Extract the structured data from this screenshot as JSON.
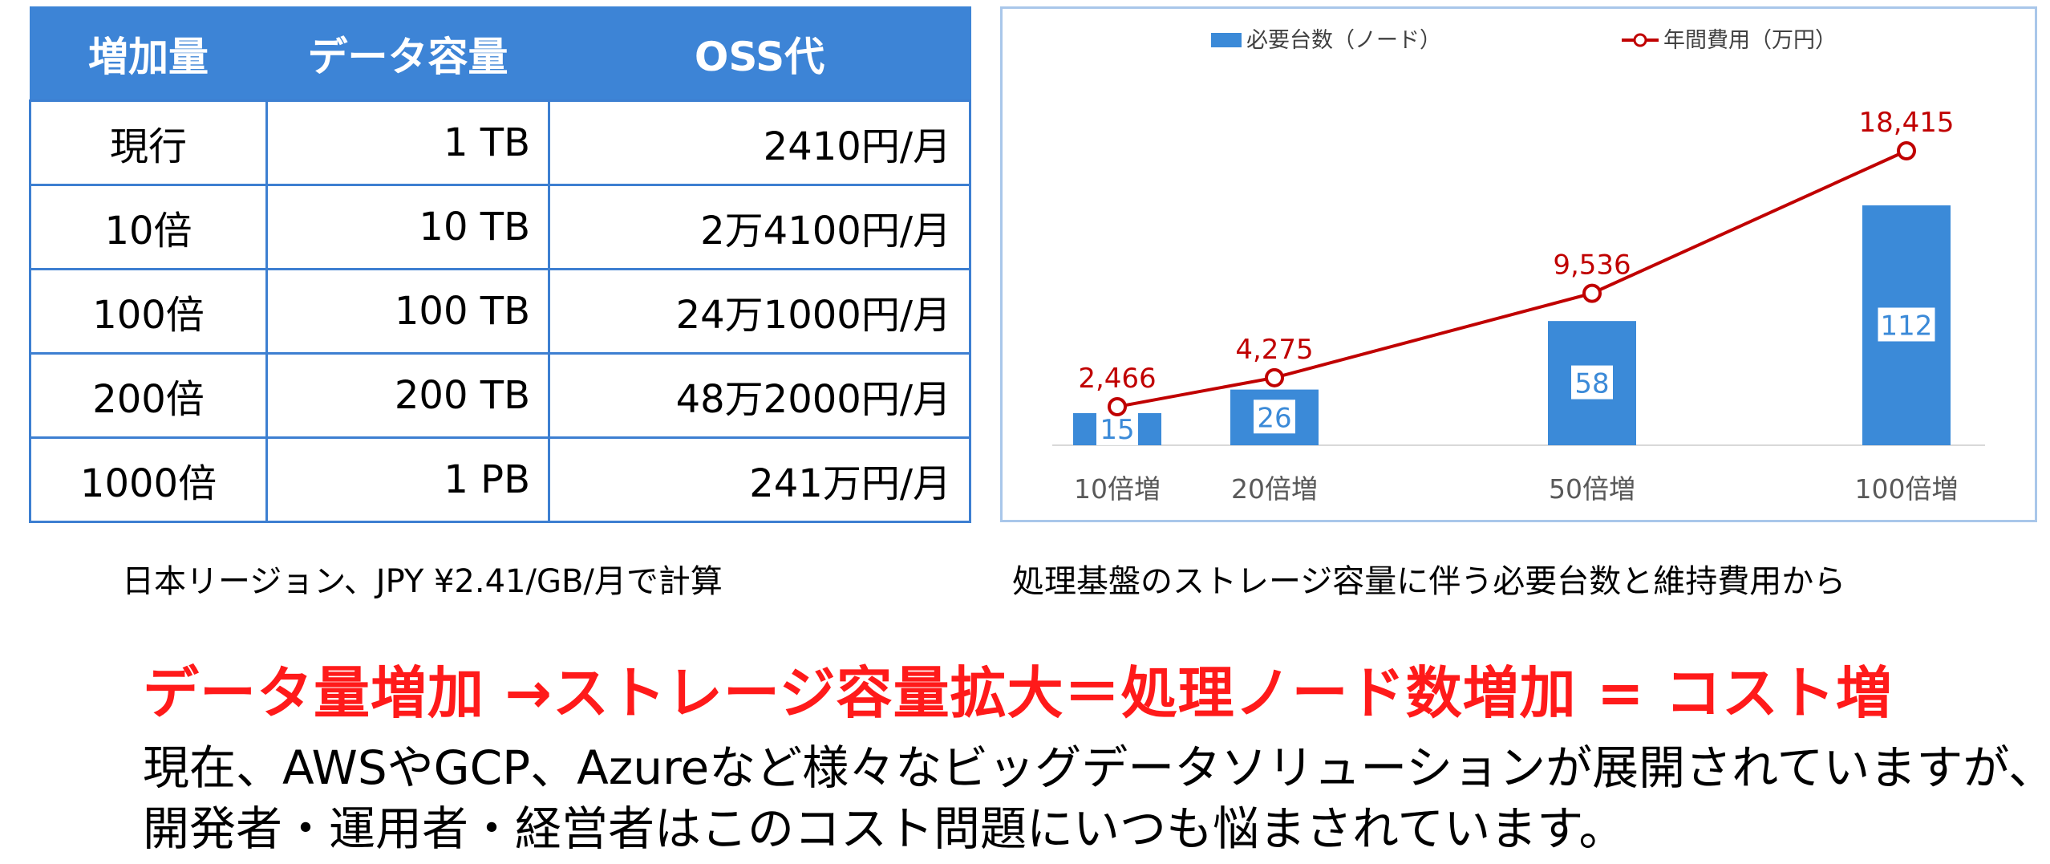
{
  "table": {
    "headers": [
      "増加量",
      "データ容量",
      "OSS代"
    ],
    "rows": [
      [
        "現行",
        "1 TB",
        "2410円/月"
      ],
      [
        "10倍",
        "10 TB",
        "2万4100円/月"
      ],
      [
        "100倍",
        "100 TB",
        "24万1000円/月"
      ],
      [
        "200倍",
        "200 TB",
        "48万2000円/月"
      ],
      [
        "1000倍",
        "1 PB",
        "241万円/月"
      ]
    ],
    "note": "日本リージョン、JPY ¥2.41/GB/月で計算"
  },
  "chart_caption": "処理基盤のストレージ容量に伴う必要台数と維持費用から",
  "chart_data": {
    "type": "bar",
    "categories": [
      "10倍増",
      "20倍増",
      "50倍増",
      "100倍増"
    ],
    "series": [
      {
        "name": "必要台数（ノード）",
        "type": "bar",
        "values": [
          15,
          26,
          58,
          112
        ],
        "labels": [
          "15",
          "26",
          "58",
          "112"
        ],
        "color": "#3b8ad8"
      },
      {
        "name": "年間費用（万円）",
        "type": "line",
        "values": [
          2466,
          4275,
          9536,
          18415
        ],
        "labels": [
          "2,466",
          "4,275",
          "9,536",
          "18,415"
        ],
        "color": "#c00000"
      }
    ],
    "legend_position": "top",
    "grid": false
  },
  "headline": "データ量増加 →ストレージ容量拡大＝処理ノード数増加 = コスト増",
  "body": [
    "現在、AWSやGCP、Azureなど様々なビッグデータソリューションが展開されていますが、",
    "開発者・運用者・経営者はこのコスト問題にいつも悩まされています。"
  ],
  "colors": {
    "table_header": "#3d84d6",
    "headline": "#ff1a1a",
    "bar": "#3b8ad8",
    "line": "#c00000"
  }
}
